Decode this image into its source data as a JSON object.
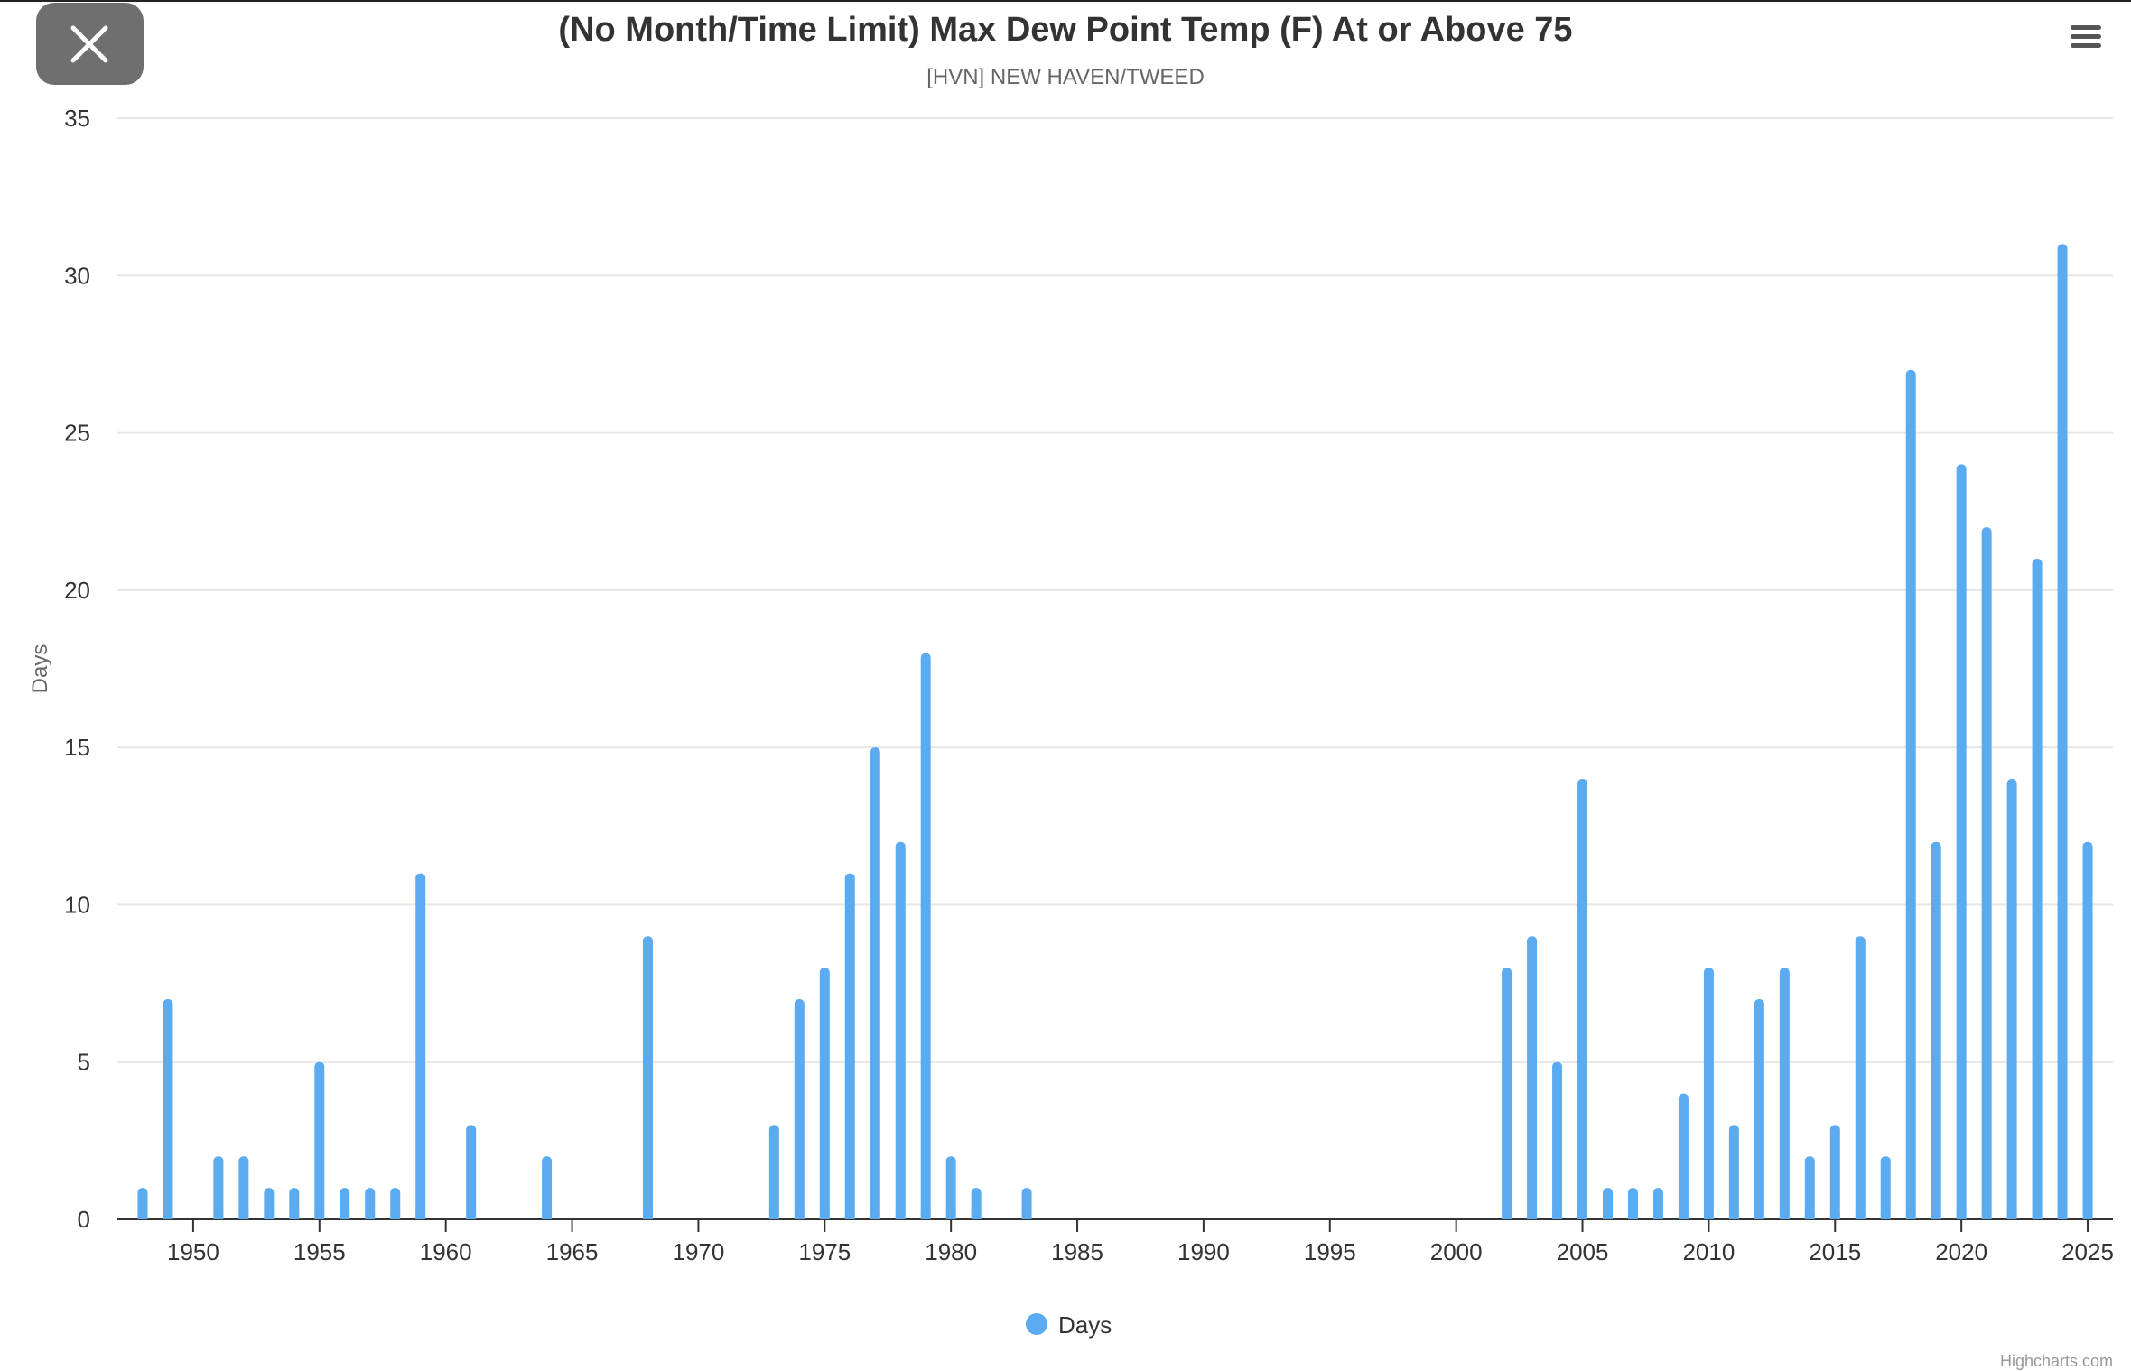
{
  "window": {
    "close_icon": "close-icon",
    "menu_icon": "hamburger-menu-icon",
    "colors": {
      "close_button_bg": "#6f6f6f",
      "series": "#5aabf0"
    }
  },
  "chart_data": {
    "type": "bar",
    "title": "(No Month/Time Limit) Max Dew Point Temp (F) At or Above 75",
    "subtitle": "[HVN] NEW HAVEN/TWEED",
    "xlabel": "",
    "ylabel": "Days",
    "ylim": [
      0,
      35
    ],
    "yticks": [
      0,
      5,
      10,
      15,
      20,
      25,
      30,
      35
    ],
    "xlim": [
      1947,
      2026
    ],
    "xticks": [
      1950,
      1955,
      1960,
      1965,
      1970,
      1975,
      1980,
      1985,
      1990,
      1995,
      2000,
      2005,
      2010,
      2015,
      2020,
      2025
    ],
    "grid": true,
    "legend_position": "bottom-center",
    "credits": "Highcharts.com",
    "series": [
      {
        "name": "Days",
        "color": "#5aabf0",
        "x": [
          1948,
          1949,
          1951,
          1952,
          1953,
          1954,
          1955,
          1956,
          1957,
          1958,
          1959,
          1961,
          1964,
          1968,
          1973,
          1974,
          1975,
          1976,
          1977,
          1978,
          1979,
          1980,
          1981,
          1983,
          2002,
          2003,
          2004,
          2005,
          2006,
          2007,
          2008,
          2009,
          2010,
          2011,
          2012,
          2013,
          2014,
          2015,
          2016,
          2017,
          2018,
          2019,
          2020,
          2021,
          2022,
          2023,
          2024,
          2025
        ],
        "values": [
          1,
          7,
          2,
          2,
          1,
          1,
          5,
          1,
          1,
          1,
          11,
          3,
          2,
          9,
          3,
          7,
          8,
          11,
          15,
          12,
          18,
          2,
          1,
          1,
          8,
          9,
          5,
          14,
          1,
          1,
          1,
          4,
          8,
          3,
          7,
          8,
          2,
          3,
          9,
          2,
          27,
          12,
          24,
          22,
          14,
          21,
          31,
          12
        ]
      }
    ]
  }
}
